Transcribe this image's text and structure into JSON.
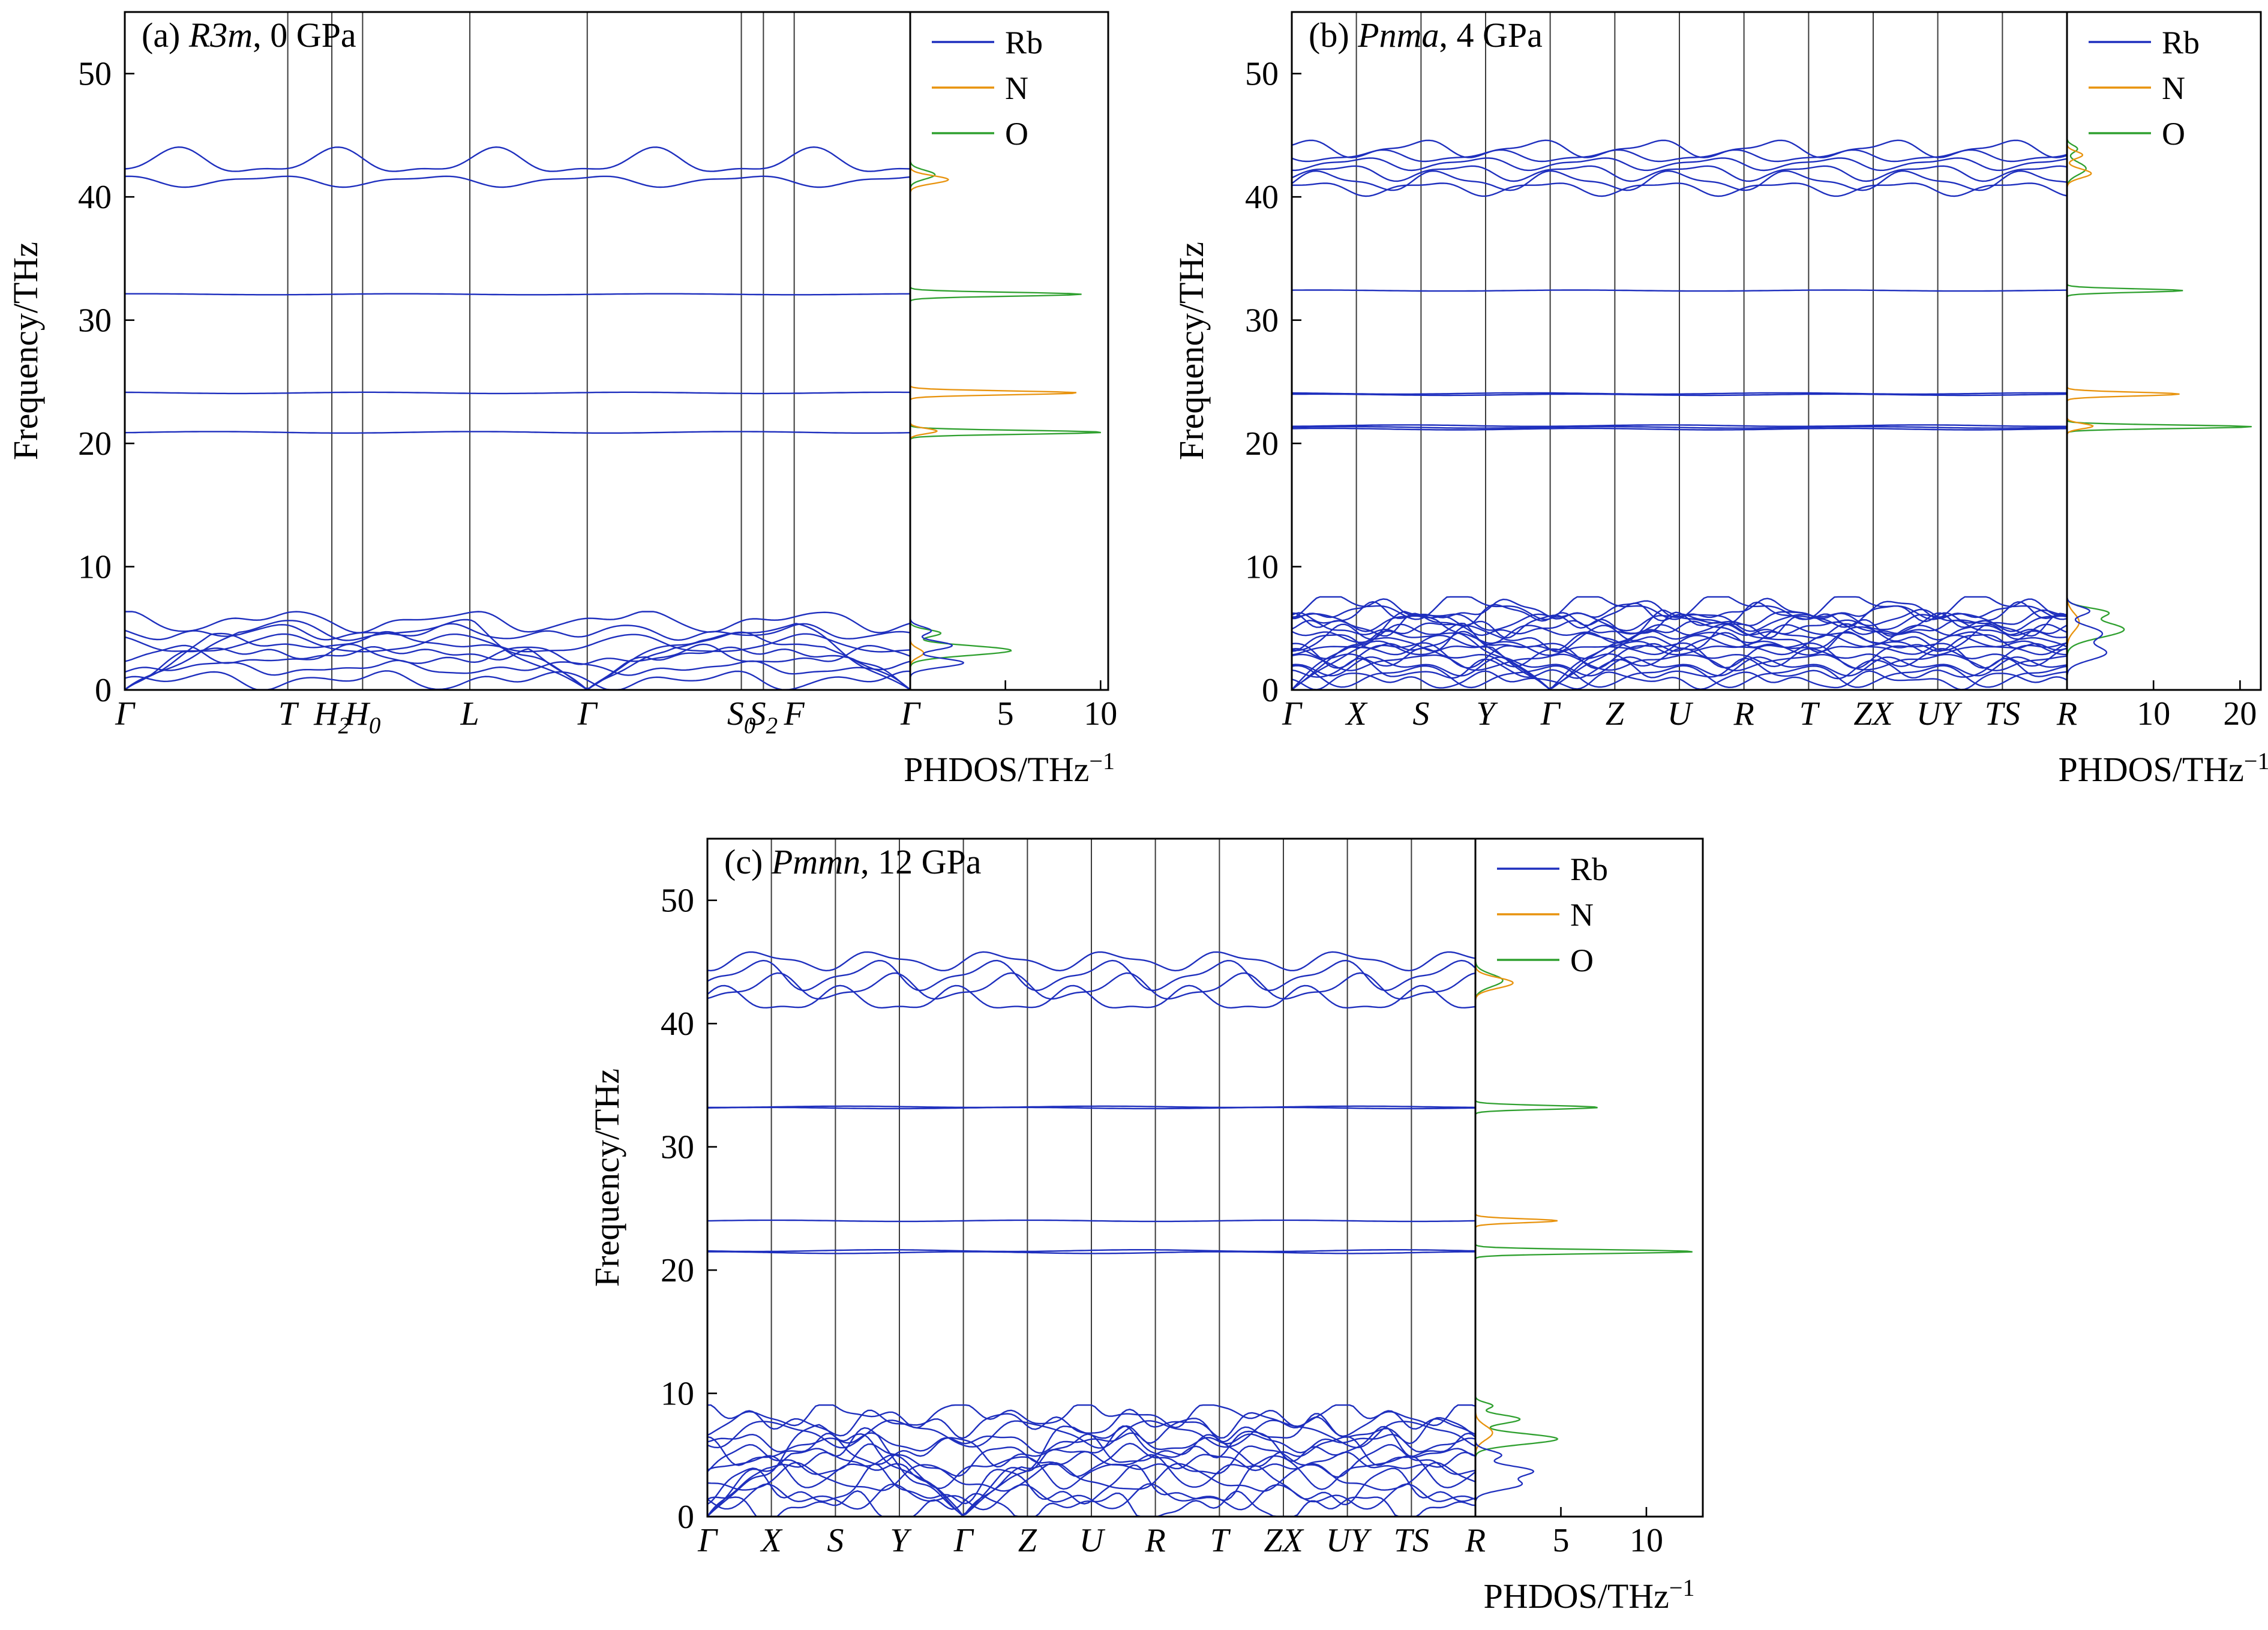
{
  "colors": {
    "Rb": "#1e2fbe",
    "N": "#e8930e",
    "O": "#2fa02f",
    "axis": "#000000",
    "grid": "#3c3c3c"
  },
  "legend": {
    "items": [
      {
        "label": "Rb",
        "color_key": "Rb"
      },
      {
        "label": "N",
        "color_key": "N"
      },
      {
        "label": "O",
        "color_key": "O"
      }
    ]
  },
  "chart_data": [
    {
      "id": "a",
      "type": "line",
      "title_parts": [
        "(a) ",
        "R3m",
        ", 0 GPa"
      ],
      "ylabel": "Frequency/THz",
      "dos_label": {
        "main": "PHDOS/THz",
        "sup": "−1"
      },
      "ymax": 55,
      "yticks": [
        0,
        10,
        20,
        30,
        40,
        50
      ],
      "kpoints": [
        {
          "label": "Γ",
          "pos": 0
        },
        {
          "label": "T",
          "pos": 0.2075
        },
        {
          "label": "H_2",
          "pos": 0.2636
        },
        {
          "label": "H_0",
          "pos": 0.3028
        },
        {
          "label": "L",
          "pos": 0.4393
        },
        {
          "label": "Γ",
          "pos": 0.5888
        },
        {
          "label": "S_0",
          "pos": 0.785
        },
        {
          "label": "S_2",
          "pos": 0.8131
        },
        {
          "label": "F",
          "pos": 0.8523
        },
        {
          "label": "Γ",
          "pos": 1
        }
      ],
      "gamma_positions": [
        0,
        0.5888,
        1
      ],
      "dos_ticks": [
        5,
        10
      ],
      "dos_max": 10.4,
      "bands": {
        "low": {
          "n": 9,
          "fmax": 6.0,
          "acoustic": 3,
          "amp": 0.55
        },
        "flat": [
          {
            "f": 20.9,
            "n": 1,
            "amp": 0.06
          },
          {
            "f": 24.1,
            "n": 1,
            "amp": 0.05
          },
          {
            "f": 32.1,
            "n": 1,
            "amp": 0.04
          }
        ],
        "high": {
          "center": 42.2,
          "offsets": [
            -0.9,
            0.6
          ],
          "amp": [
            0.35,
            0.8
          ]
        }
      },
      "dos": {
        "Rb": [
          {
            "f": 2.2,
            "h": 2.8,
            "w": 0.5
          },
          {
            "f": 3.6,
            "h": 2.2,
            "w": 0.5
          },
          {
            "f": 4.8,
            "h": 1.1,
            "w": 0.45
          }
        ],
        "N": [
          {
            "f": 3.0,
            "h": 0.7,
            "w": 0.5
          },
          {
            "f": 21.0,
            "h": 1.4,
            "w": 0.3
          },
          {
            "f": 24.1,
            "h": 8.8,
            "w": 0.22
          },
          {
            "f": 41.4,
            "h": 2.0,
            "w": 0.45
          }
        ],
        "O": [
          {
            "f": 3.2,
            "h": 5.3,
            "w": 0.55
          },
          {
            "f": 4.6,
            "h": 1.6,
            "w": 0.4
          },
          {
            "f": 20.9,
            "h": 10.1,
            "w": 0.22
          },
          {
            "f": 32.1,
            "h": 9.0,
            "w": 0.22
          },
          {
            "f": 41.8,
            "h": 1.3,
            "w": 0.5
          }
        ]
      }
    },
    {
      "id": "b",
      "type": "line",
      "title_parts": [
        "(b) ",
        "Pnma",
        ", 4 GPa"
      ],
      "ylabel": "Frequency/THz",
      "dos_label": {
        "main": "PHDOS/THz",
        "sup": "−1"
      },
      "ymax": 55,
      "yticks": [
        0,
        10,
        20,
        30,
        40,
        50
      ],
      "kpoints": [
        {
          "label": "Γ",
          "pos": 0
        },
        {
          "label": "X",
          "pos": 0.0833
        },
        {
          "label": "S",
          "pos": 0.1667
        },
        {
          "label": "Y",
          "pos": 0.25
        },
        {
          "label": "Γ",
          "pos": 0.3333
        },
        {
          "label": "Z",
          "pos": 0.4167
        },
        {
          "label": "U",
          "pos": 0.5
        },
        {
          "label": "R",
          "pos": 0.5833
        },
        {
          "label": "T",
          "pos": 0.6667
        },
        {
          "label": "ZX",
          "pos": 0.75
        },
        {
          "label": "UY",
          "pos": 0.8333
        },
        {
          "label": "TS",
          "pos": 0.9167
        },
        {
          "label": "R",
          "pos": 1
        }
      ],
      "gamma_positions": [
        0,
        0.3333
      ],
      "dos_ticks": [
        10,
        20
      ],
      "dos_max": 22.4,
      "bands": {
        "low": {
          "n": 20,
          "fmax": 7.2,
          "acoustic": 3,
          "amp": 0.62
        },
        "flat": [
          {
            "f": 21.3,
            "n": 3,
            "gap": 0.14,
            "amp": 0.06
          },
          {
            "f": 24.0,
            "n": 2,
            "gap": 0.1,
            "amp": 0.05
          },
          {
            "f": 32.4,
            "n": 1,
            "amp": 0.04
          }
        ],
        "high": {
          "center": 42.4,
          "offsets": [
            -1.7,
            -1.1,
            -0.4,
            0.3,
            0.9,
            1.5
          ],
          "amp": 0.5
        }
      },
      "dos": {
        "Rb": [
          {
            "f": 3.0,
            "h": 4.5,
            "w": 0.8
          },
          {
            "f": 4.6,
            "h": 4.0,
            "w": 0.8
          },
          {
            "f": 6.4,
            "h": 2.6,
            "w": 0.5
          }
        ],
        "N": [
          {
            "f": 5.5,
            "h": 1.4,
            "w": 1.0
          },
          {
            "f": 21.4,
            "h": 3.0,
            "w": 0.3
          },
          {
            "f": 24.0,
            "h": 13.0,
            "w": 0.22
          },
          {
            "f": 41.9,
            "h": 2.8,
            "w": 0.5
          },
          {
            "f": 43.4,
            "h": 1.8,
            "w": 0.4
          }
        ],
        "O": [
          {
            "f": 4.9,
            "h": 6.6,
            "w": 0.9
          },
          {
            "f": 6.3,
            "h": 4.2,
            "w": 0.5
          },
          {
            "f": 21.35,
            "h": 21.4,
            "w": 0.2
          },
          {
            "f": 32.4,
            "h": 13.4,
            "w": 0.2
          },
          {
            "f": 42.3,
            "h": 2.2,
            "w": 0.7
          },
          {
            "f": 43.9,
            "h": 1.2,
            "w": 0.4
          }
        ]
      }
    },
    {
      "id": "c",
      "type": "line",
      "title_parts": [
        "(c) ",
        "Pmmn",
        ", 12 GPa"
      ],
      "ylabel": "Frequency/THz",
      "dos_label": {
        "main": "PHDOS/THz",
        "sup": "−1"
      },
      "ymax": 55,
      "yticks": [
        0,
        10,
        20,
        30,
        40,
        50
      ],
      "kpoints": [
        {
          "label": "Γ",
          "pos": 0
        },
        {
          "label": "X",
          "pos": 0.0833
        },
        {
          "label": "S",
          "pos": 0.1667
        },
        {
          "label": "Y",
          "pos": 0.25
        },
        {
          "label": "Γ",
          "pos": 0.3333
        },
        {
          "label": "Z",
          "pos": 0.4167
        },
        {
          "label": "U",
          "pos": 0.5
        },
        {
          "label": "R",
          "pos": 0.5833
        },
        {
          "label": "T",
          "pos": 0.6667
        },
        {
          "label": "ZX",
          "pos": 0.75
        },
        {
          "label": "UY",
          "pos": 0.8333
        },
        {
          "label": "TS",
          "pos": 0.9167
        },
        {
          "label": "R",
          "pos": 1
        }
      ],
      "gamma_positions": [
        0,
        0.3333
      ],
      "dos_ticks": [
        5,
        10
      ],
      "dos_max": 13.3,
      "bands": {
        "low": {
          "n": 14,
          "fmax": 8.7,
          "acoustic": 3,
          "amp": 0.85
        },
        "flat": [
          {
            "f": 21.5,
            "n": 2,
            "gap": 0.16,
            "amp": 0.07
          },
          {
            "f": 24.0,
            "n": 1,
            "amp": 0.05
          },
          {
            "f": 33.2,
            "n": 2,
            "gap": 0.1,
            "amp": 0.05
          }
        ],
        "high": {
          "center": 43.6,
          "offsets": [
            -1.7,
            -0.7,
            0.3,
            1.5
          ],
          "amp": 0.85
        }
      },
      "dos": {
        "Rb": [
          {
            "f": 2.6,
            "h": 2.6,
            "w": 0.6
          },
          {
            "f": 3.7,
            "h": 3.3,
            "w": 0.6
          },
          {
            "f": 5.0,
            "h": 1.5,
            "w": 0.5
          }
        ],
        "N": [
          {
            "f": 6.8,
            "h": 1.0,
            "w": 0.8
          },
          {
            "f": 24.0,
            "h": 4.8,
            "w": 0.22
          },
          {
            "f": 43.3,
            "h": 2.2,
            "w": 0.6
          }
        ],
        "O": [
          {
            "f": 6.3,
            "h": 4.8,
            "w": 0.6
          },
          {
            "f": 7.9,
            "h": 2.6,
            "w": 0.5
          },
          {
            "f": 9.0,
            "h": 1.0,
            "w": 0.35
          },
          {
            "f": 21.5,
            "h": 12.8,
            "w": 0.22
          },
          {
            "f": 33.2,
            "h": 7.2,
            "w": 0.22
          },
          {
            "f": 43.5,
            "h": 1.6,
            "w": 0.7
          }
        ]
      }
    }
  ]
}
